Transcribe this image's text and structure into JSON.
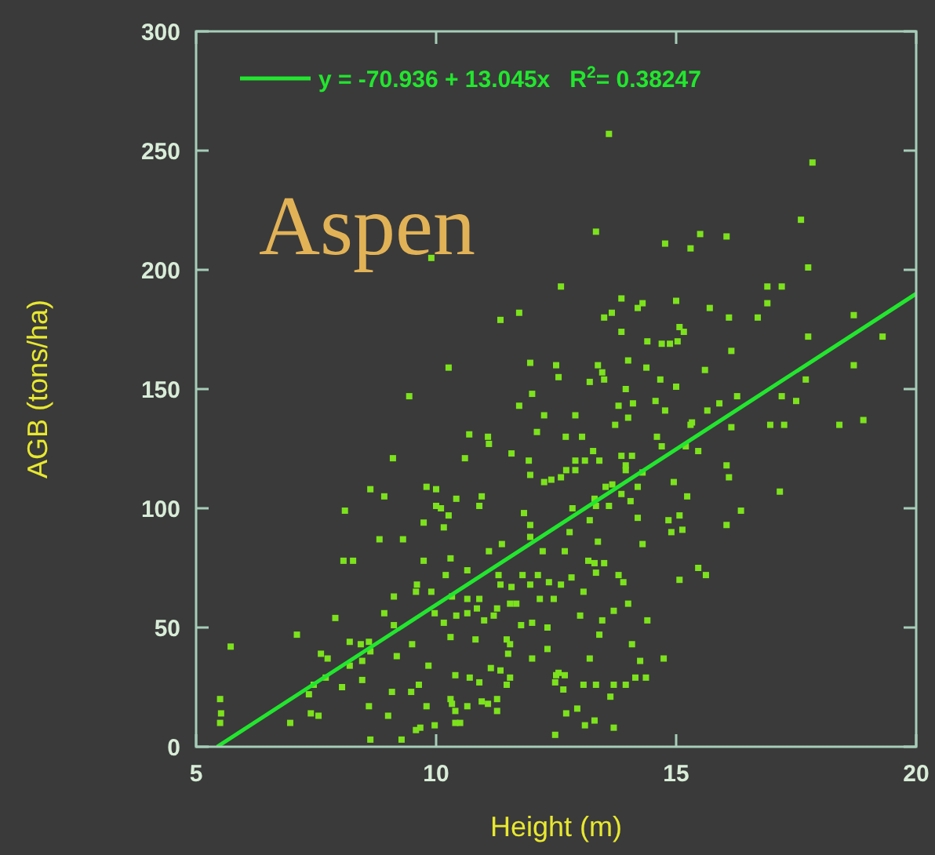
{
  "chart_data": {
    "type": "scatter",
    "xlabel": "Height (m)",
    "ylabel": "AGB (tons/ha)",
    "annotations": [
      "Aspen"
    ],
    "xlim": [
      5,
      20
    ],
    "ylim": [
      0,
      300
    ],
    "xticks": [
      5,
      10,
      15,
      20
    ],
    "yticks": [
      0,
      50,
      100,
      150,
      200,
      250,
      300
    ],
    "grid": false,
    "legend": "top left",
    "marker": "square",
    "series": [
      {
        "color": "#7ce21c",
        "x": [
          13.33,
          17.6,
          14.77,
          15.5,
          16.05,
          15.3,
          17.75,
          12.6,
          16.9,
          17.2,
          13.86,
          14.3,
          14.2,
          15.0,
          13.5,
          13.66,
          15.7,
          16.1,
          16.7,
          16.9,
          18.7,
          13.86,
          15.07,
          15.16,
          14.4,
          14.7,
          14.87,
          15.03,
          17.75,
          19.3,
          16.15,
          12.5,
          12.55,
          13.37,
          13.46,
          13.2,
          13.5,
          14.0,
          14.38,
          15.6,
          18.7,
          14.67,
          15.0,
          13.95,
          13.8,
          14.1,
          14.57,
          14.77,
          16.27,
          17.2,
          17.5,
          17.7,
          12.9,
          14.0,
          13.73,
          15.65,
          15.9,
          15.3,
          15.33,
          16.15,
          16.96,
          17.25,
          18.4,
          18.9,
          12.7,
          13.04,
          14.6,
          13.27,
          13.86,
          14.7,
          15.2,
          15.46,
          12.9,
          13.4,
          13.95,
          16.05,
          14.08,
          9.9,
          11.73,
          11.34,
          10.26,
          11.96,
          9.44,
          12.0,
          11.73,
          12.25,
          10.69,
          11.08,
          11.1,
          12.1,
          9.1,
          10.6,
          11.57,
          11.93,
          11.96,
          12.25,
          12.4,
          8.63,
          8.92,
          9.8,
          10.0,
          10.42,
          10.95,
          10.9,
          8.1,
          10.0,
          10.1,
          10.26,
          9.74,
          10.16,
          11.83,
          11.96,
          11.96,
          8.82,
          9.31,
          11.37,
          11.1,
          12.22,
          8.07,
          8.27,
          9.74,
          10.3,
          10.65,
          10.2,
          11.3,
          11.8,
          12.12,
          9.6,
          9.58,
          9.9,
          9.12,
          10.33,
          10.65,
          10.9,
          11.34,
          11.57,
          11.96,
          12.35,
          12.16,
          11.54,
          11.67,
          10.85,
          11.27,
          9.97,
          10.42,
          10.65,
          8.92,
          7.9,
          9.12,
          10.16,
          11.0,
          11.2,
          11.77,
          12.0,
          12.32,
          7.1,
          5.72,
          8.2,
          8.43,
          8.6,
          8.63,
          9.5,
          10.3,
          10.82,
          11.47,
          11.54,
          11.5,
          12.0,
          12.32,
          7.6,
          7.74,
          9.18,
          8.2,
          8.46,
          9.84,
          10.4,
          10.7,
          10.9,
          11.14,
          11.34,
          11.54,
          11.47,
          12.5,
          7.45,
          7.7,
          8.04,
          8.46,
          9.08,
          9.48,
          9.64,
          7.35,
          5.5,
          5.52,
          5.5,
          10.3,
          10.33,
          10.65,
          10.95,
          11.08,
          11.27,
          11.27,
          10.4,
          9.8,
          8.6,
          9.0,
          7.39,
          7.55,
          6.96,
          10.4,
          10.5,
          9.97,
          9.67,
          9.58,
          8.63,
          9.28,
          12.48,
          16.1,
          17.16,
          16.35,
          16.05,
          14.95,
          15.23,
          14.84,
          15.07,
          14.9,
          15.13,
          14.2,
          14.2,
          14.05,
          13.86,
          13.6,
          13.67,
          13.53,
          13.1,
          12.9,
          12.71,
          12.6,
          13.95,
          14.3,
          13.3,
          13.33,
          13.2,
          12.84,
          12.78,
          13.37,
          14.3,
          12.68,
          13.17,
          13.3,
          13.5,
          13.33,
          13.8,
          13.9,
          15.07,
          15.46,
          15.62,
          12.82,
          12.6,
          13.07,
          12.45,
          14.0,
          13.7,
          13.0,
          13.46,
          14.4,
          13.4,
          14.08,
          13.2,
          14.25,
          14.74,
          12.55,
          12.68,
          12.48,
          12.65,
          13.07,
          13.33,
          13.7,
          13.95,
          14.15,
          14.37,
          13.63,
          12.71,
          12.94,
          13.3,
          13.1,
          13.7,
          13.6,
          17.84
        ],
        "values": [
          216,
          221,
          211,
          215,
          214,
          209,
          201,
          193,
          193,
          193,
          188,
          186,
          184,
          187,
          180,
          182,
          184,
          180,
          180,
          186,
          181,
          174,
          176,
          174,
          170,
          169,
          169,
          170,
          172,
          172,
          166,
          160,
          155,
          160,
          157,
          153,
          154,
          162,
          159,
          158,
          160,
          154,
          151,
          150,
          143,
          144,
          145,
          141,
          147,
          147,
          145,
          154,
          139,
          138,
          135,
          141,
          144,
          135,
          136,
          134,
          135,
          135,
          135,
          137,
          130,
          130,
          130,
          124,
          122,
          126,
          126,
          124,
          120,
          120,
          118,
          118,
          122,
          205,
          182,
          179,
          159,
          161,
          147,
          148,
          143,
          139,
          131,
          130,
          127,
          132,
          121,
          121,
          123,
          120,
          114,
          111,
          112,
          108,
          105,
          109,
          108,
          104,
          105,
          101,
          99,
          101,
          100,
          97,
          94,
          92,
          98,
          93,
          88,
          87,
          87,
          85,
          82,
          82,
          78,
          78,
          78,
          79,
          74,
          72,
          72,
          72,
          72,
          68,
          65,
          65,
          63,
          63,
          62,
          62,
          68,
          67,
          68,
          69,
          62,
          60,
          60,
          58,
          58,
          56,
          55,
          56,
          56,
          54,
          51,
          52,
          53,
          55,
          51,
          52,
          50,
          47,
          42,
          44,
          43,
          44,
          40,
          43,
          46,
          45,
          45,
          43,
          39,
          37,
          41,
          39,
          37,
          38,
          34,
          36,
          34,
          30,
          29,
          27,
          33,
          32,
          29,
          26,
          30,
          26,
          29,
          25,
          28,
          23,
          23,
          26,
          22,
          20,
          14,
          10,
          20,
          18,
          17,
          19,
          18,
          20,
          15,
          15,
          17,
          17,
          13,
          14,
          13,
          10,
          10,
          10,
          9,
          8,
          7,
          3,
          3,
          5,
          113,
          107,
          99,
          93,
          111,
          105,
          95,
          97,
          90,
          91,
          109,
          96,
          103,
          106,
          101,
          110,
          109,
          120,
          116,
          116,
          113,
          116,
          115,
          104,
          101,
          95,
          100,
          90,
          86,
          85,
          82,
          78,
          77,
          77,
          73,
          72,
          69,
          70,
          75,
          72,
          71,
          68,
          65,
          62,
          60,
          57,
          55,
          53,
          53,
          47,
          43,
          37,
          36,
          37,
          31,
          30,
          27,
          24,
          26,
          26,
          26,
          26,
          29,
          29,
          21,
          14,
          16,
          11,
          9,
          8,
          257,
          245
        ]
      },
      {
        "type": "line",
        "name": "y = -70.936 + 13.045x   R$^{2}$= 0.38247",
        "color": "#22e62e",
        "marker": "none",
        "line_style": "solid",
        "x": [
          5.438,
          20
        ],
        "values": [
          0,
          190
        ]
      }
    ]
  }
}
